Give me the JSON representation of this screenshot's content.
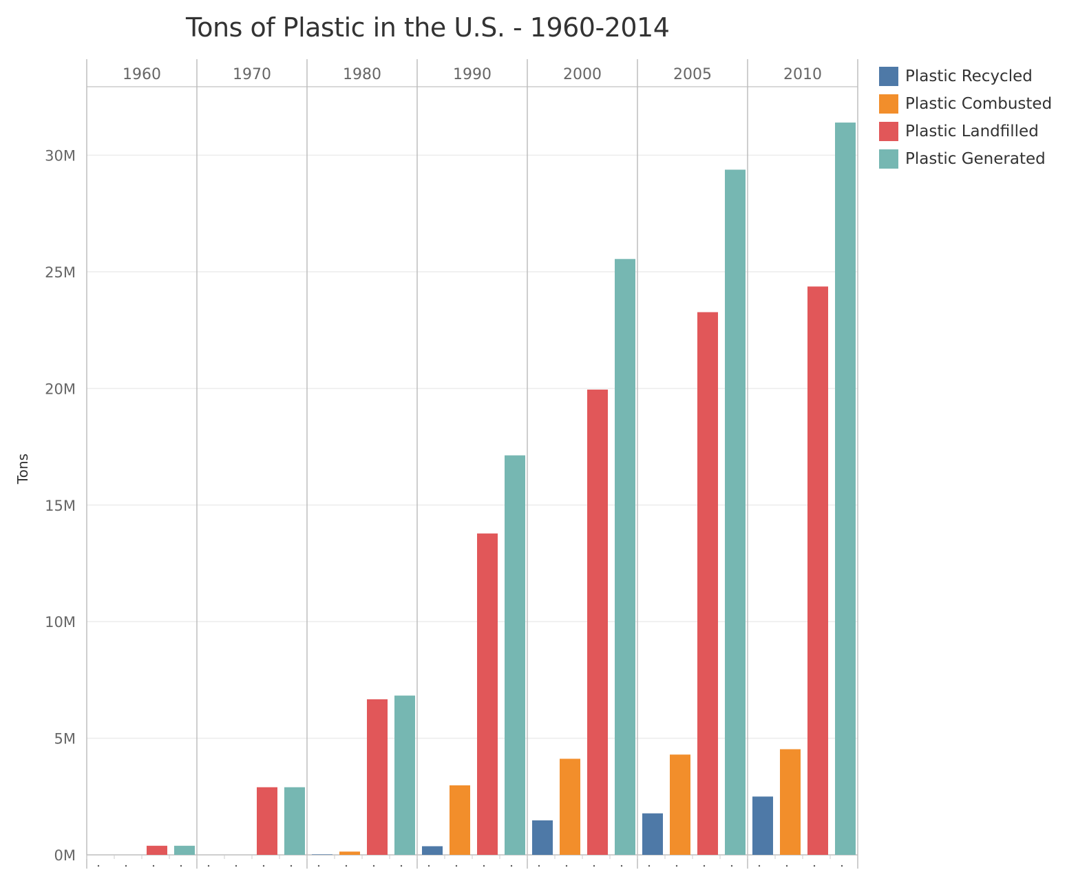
{
  "chart_data": {
    "type": "bar",
    "title": "Tons of Plastic in the U.S. - 1960-2014",
    "ylabel": "Tons",
    "xlabel": "",
    "ylim": [
      0,
      32000000
    ],
    "y_ticks": [
      {
        "value": 0,
        "label": "0M"
      },
      {
        "value": 5000000,
        "label": "5M"
      },
      {
        "value": 10000000,
        "label": "10M"
      },
      {
        "value": 15000000,
        "label": "15M"
      },
      {
        "value": 20000000,
        "label": "20M"
      },
      {
        "value": 25000000,
        "label": "25M"
      },
      {
        "value": 30000000,
        "label": "30M"
      }
    ],
    "categories": [
      "1960",
      "1970",
      "1980",
      "1990",
      "2000",
      "2005",
      "2010"
    ],
    "series": [
      {
        "name": "Plastic Recycled",
        "color": "#4e79a7",
        "values": [
          0,
          0,
          20000,
          370000,
          1480000,
          1780000,
          2500000
        ]
      },
      {
        "name": "Plastic Combusted",
        "color": "#f28e2b",
        "values": [
          0,
          0,
          140000,
          2980000,
          4120000,
          4300000,
          4530000
        ]
      },
      {
        "name": "Plastic Landfilled",
        "color": "#e15759",
        "values": [
          390000,
          2900000,
          6670000,
          13780000,
          19950000,
          23270000,
          24370000
        ]
      },
      {
        "name": "Plastic Generated",
        "color": "#76b7b2",
        "values": [
          390000,
          2900000,
          6830000,
          17130000,
          25550000,
          29380000,
          31400000
        ]
      }
    ],
    "grid": true,
    "legend": "right"
  }
}
